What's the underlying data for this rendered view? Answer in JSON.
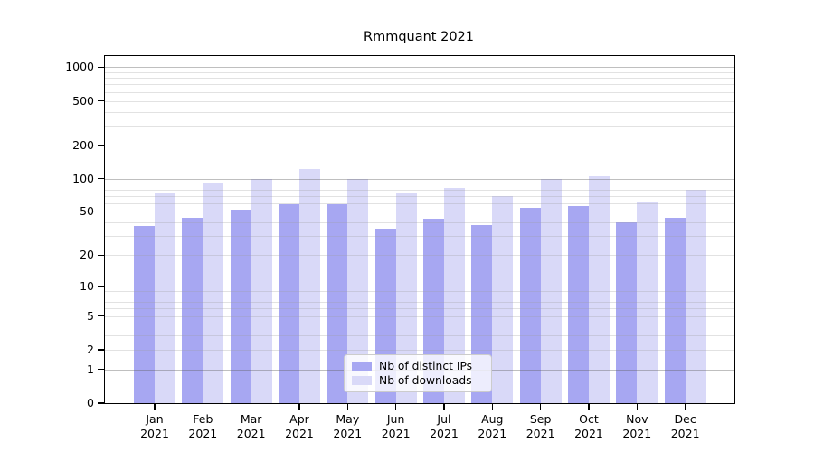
{
  "chart_data": {
    "type": "bar",
    "title": "Rmmquant 2021",
    "x_tick_months": [
      "Jan",
      "Feb",
      "Mar",
      "Apr",
      "May",
      "Jun",
      "Jul",
      "Aug",
      "Sep",
      "Oct",
      "Nov",
      "Dec"
    ],
    "x_tick_year": "2021",
    "series": [
      {
        "name": "Nb of distinct IPs",
        "color": "#a7a7f2",
        "values": [
          37,
          44,
          52,
          59,
          59,
          35,
          43,
          38,
          54,
          56,
          40,
          44
        ]
      },
      {
        "name": "Nb of downloads",
        "color": "#d9d9f8",
        "values": [
          75,
          92,
          100,
          123,
          100,
          75,
          82,
          70,
          100,
          106,
          61,
          79
        ]
      }
    ],
    "y_scale": "log1p",
    "ylim": [
      0,
      1000
    ],
    "y_tick_values": [
      0,
      1,
      2,
      5,
      10,
      20,
      50,
      100,
      200,
      500,
      1000
    ],
    "y_major_gridlines": [
      1,
      10,
      100,
      1000
    ],
    "y_minor_gridlines": [
      2,
      3,
      4,
      5,
      6,
      7,
      8,
      9,
      20,
      30,
      40,
      50,
      60,
      70,
      80,
      90,
      200,
      300,
      400,
      500,
      600,
      700,
      800,
      900
    ],
    "grid": "on",
    "legend_position": "lower-center",
    "colors": {
      "major_grid": "rgba(96,96,96,0.40)",
      "minor_grid": "rgba(160,160,160,0.30)",
      "frame": "#000000",
      "text": "#000000",
      "background": "#ffffff"
    }
  }
}
